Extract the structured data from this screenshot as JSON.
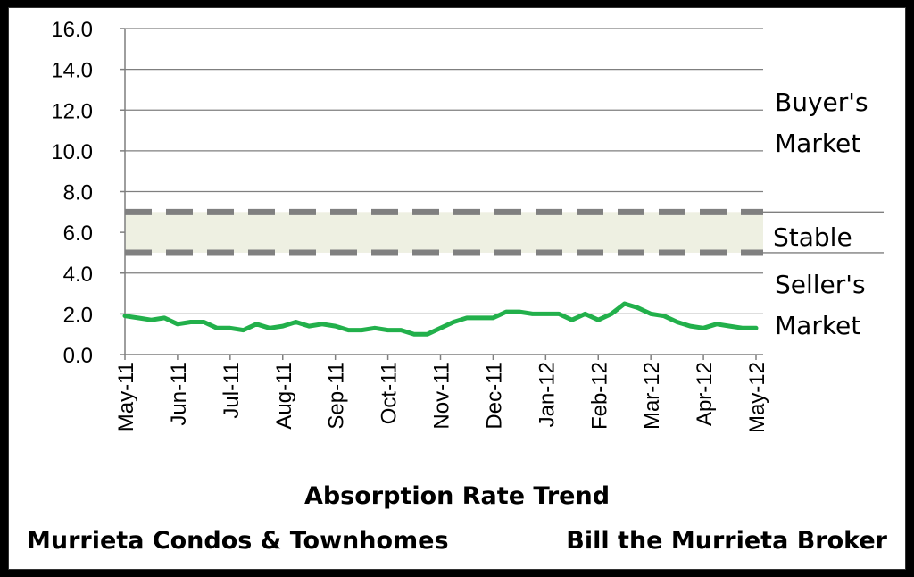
{
  "chart_data": {
    "type": "line",
    "title": "Absorption Rate Trend",
    "subtitle_left": "Murrieta  Condos & Townhomes",
    "subtitle_right": "Bill the Murrieta Broker",
    "xlabel": "",
    "ylabel": "",
    "ylim": [
      0,
      16
    ],
    "y_ticks": [
      "0.0",
      "2.0",
      "4.0",
      "6.0",
      "8.0",
      "10.0",
      "12.0",
      "14.0",
      "16.0"
    ],
    "x_ticks": [
      "May-11",
      "Jun-11",
      "Jul-11",
      "Aug-11",
      "Sep-11",
      "Oct-11",
      "Nov-11",
      "Dec-11",
      "Jan-12",
      "Feb-12",
      "Mar-12",
      "Apr-12",
      "May-12"
    ],
    "grid": true,
    "series": [
      {
        "color": "#22b04b",
        "x": [
          0,
          0.25,
          0.5,
          0.75,
          1.0,
          1.25,
          1.5,
          1.75,
          2.0,
          2.25,
          2.5,
          2.75,
          3.0,
          3.25,
          3.5,
          3.75,
          4.0,
          4.25,
          4.5,
          4.75,
          5.0,
          5.25,
          5.5,
          5.75,
          6.0,
          6.25,
          6.5,
          6.75,
          7.0,
          7.25,
          7.5,
          7.75,
          8.0,
          8.25,
          8.5,
          8.75,
          9.0,
          9.25,
          9.5,
          9.75,
          10.0,
          10.25,
          10.5,
          10.75,
          11.0,
          11.25,
          11.5,
          11.75,
          12.0
        ],
        "values": [
          1.9,
          1.8,
          1.7,
          1.8,
          1.5,
          1.6,
          1.6,
          1.3,
          1.3,
          1.2,
          1.5,
          1.3,
          1.4,
          1.6,
          1.4,
          1.5,
          1.4,
          1.2,
          1.2,
          1.3,
          1.2,
          1.2,
          1.0,
          1.0,
          1.3,
          1.6,
          1.8,
          1.8,
          1.8,
          2.1,
          2.1,
          2.0,
          2.0,
          2.0,
          1.7,
          2.0,
          1.7,
          2.0,
          2.5,
          2.3,
          2.0,
          1.9,
          1.6,
          1.4,
          1.3,
          1.5,
          1.4,
          1.3,
          1.3
        ]
      }
    ],
    "bands": {
      "stable_low": 5.0,
      "stable_high": 7.0,
      "fill_color": "#eef0e2",
      "dash_color": "#808080"
    },
    "zone_labels": {
      "buyers_line1": "Buyer's",
      "buyers_line2": "Market",
      "stable": "Stable",
      "sellers_line1": "Seller's",
      "sellers_line2": "Market"
    }
  }
}
